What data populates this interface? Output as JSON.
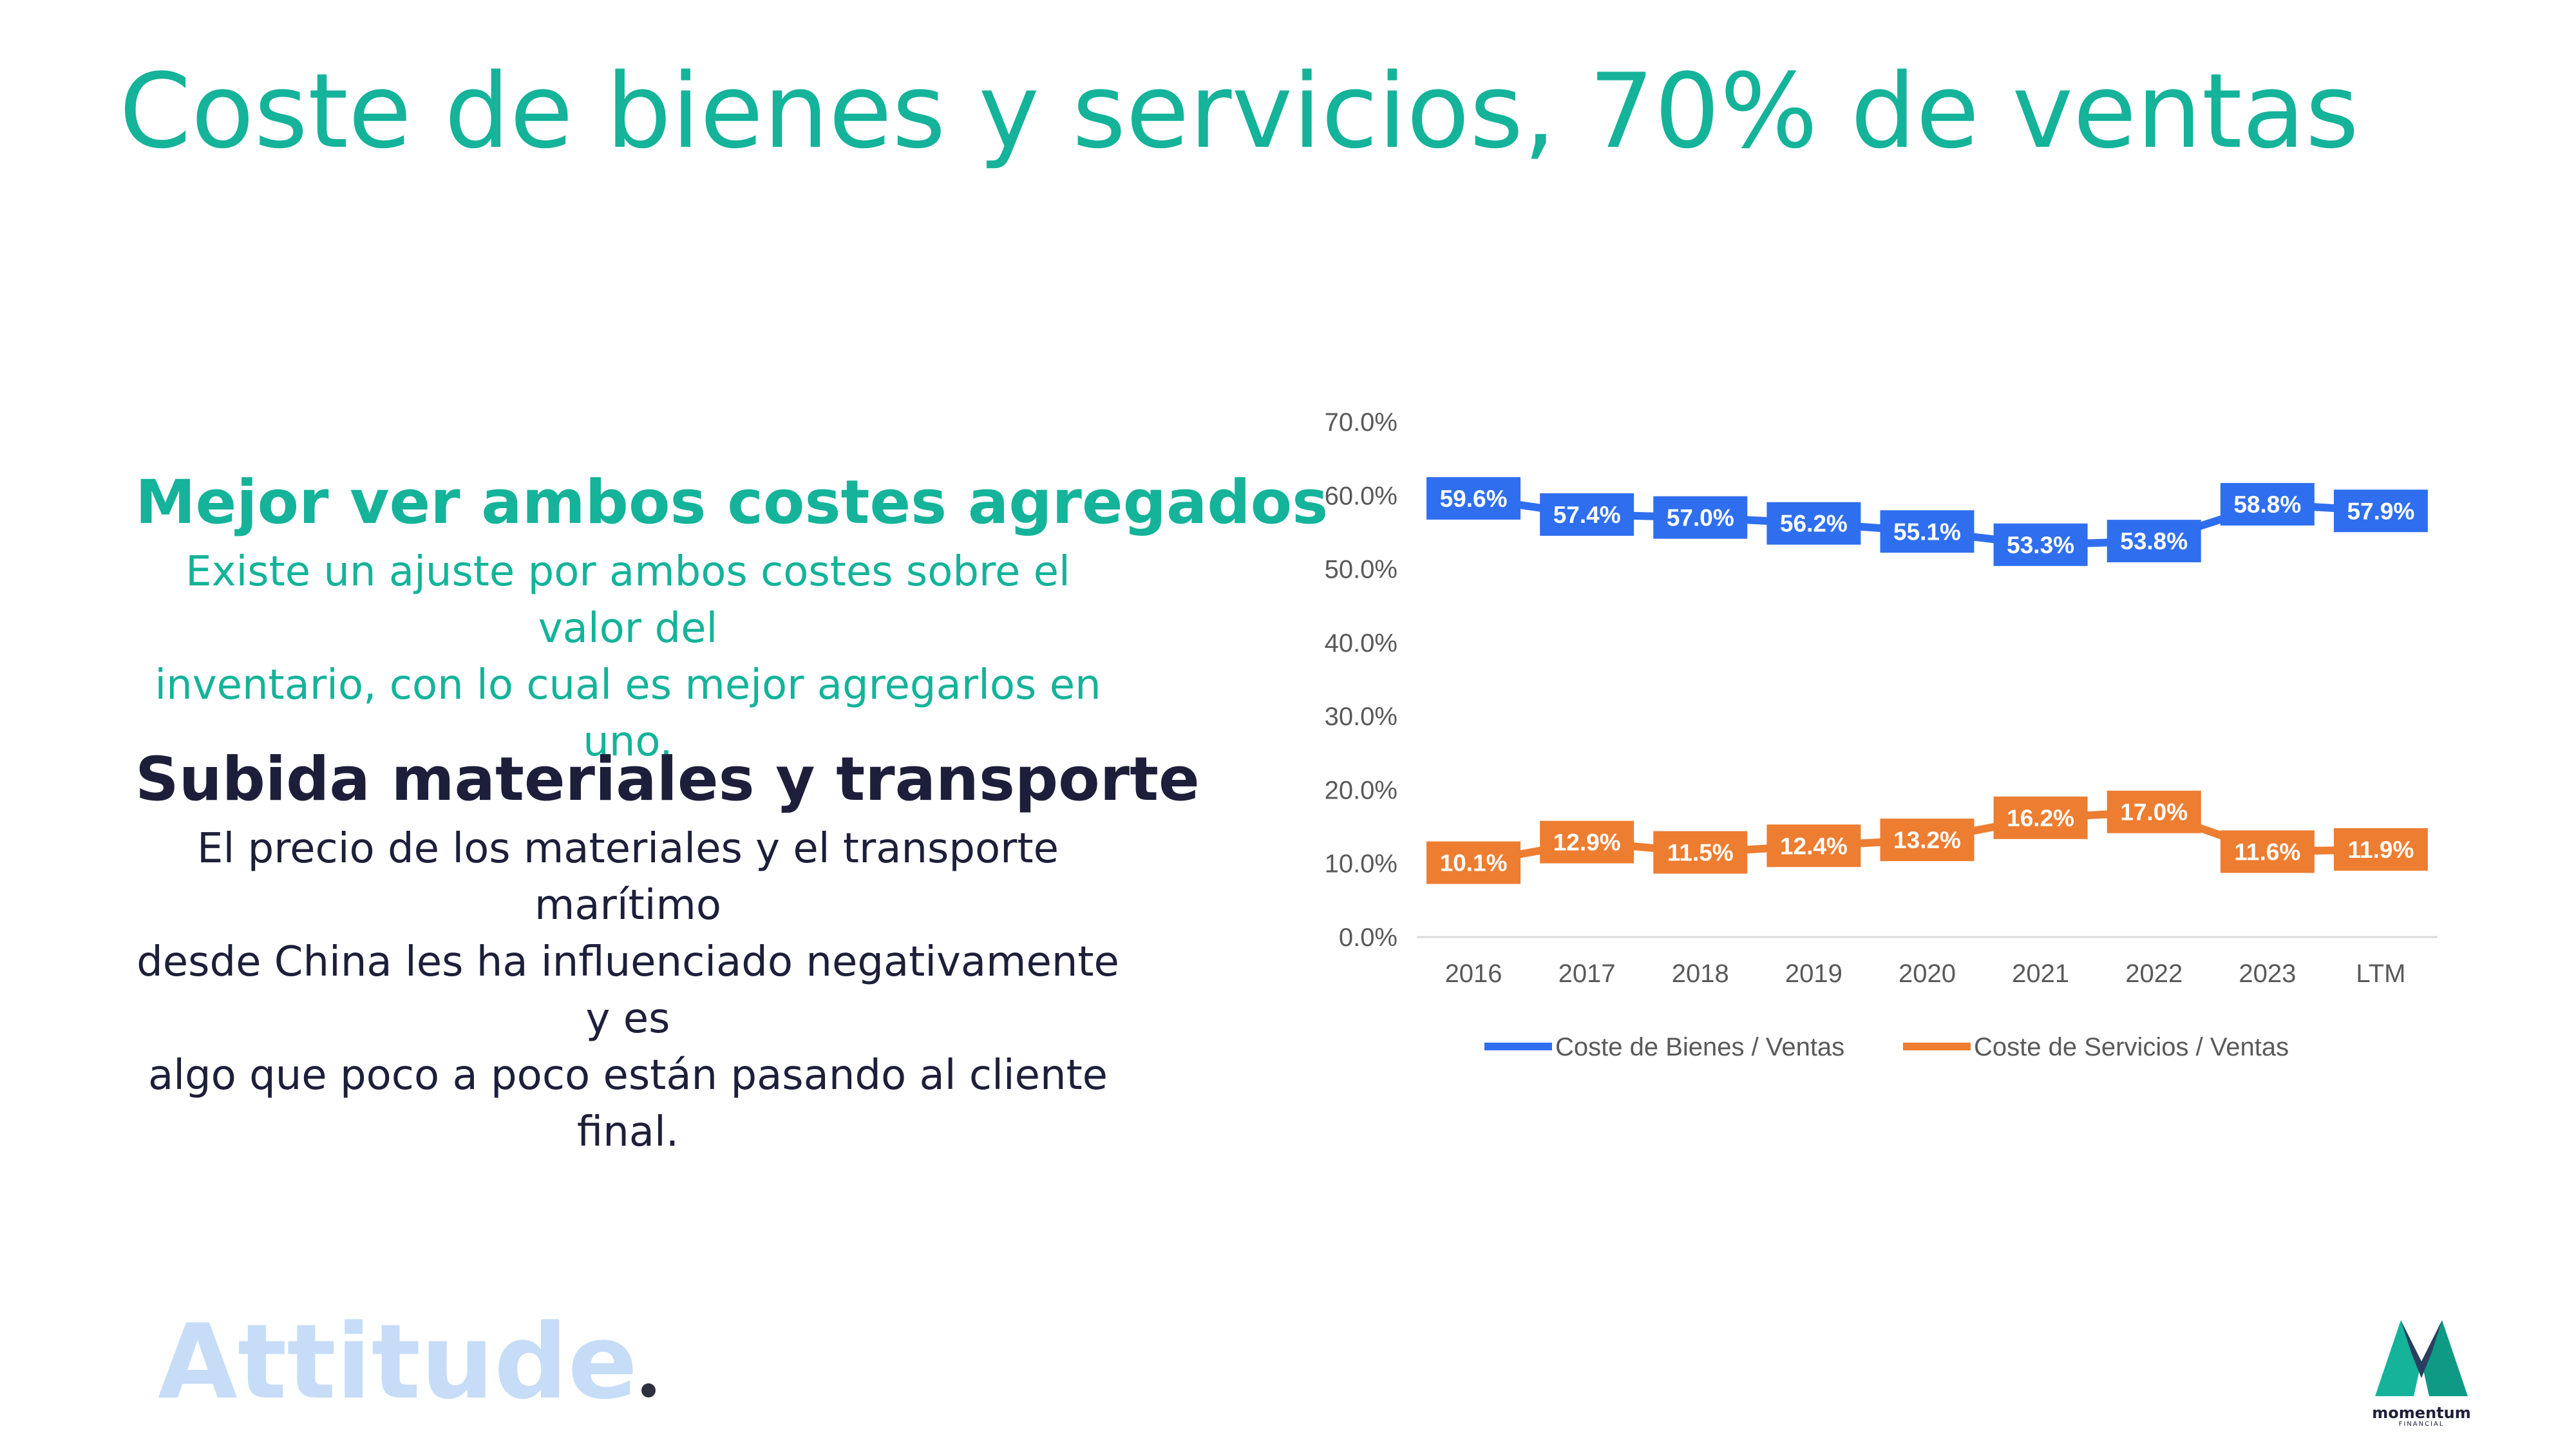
{
  "slide": {
    "title": "Coste de bienes y servicios, 70% de ventas"
  },
  "blocks": [
    {
      "heading": "Mejor ver ambos costes agregados",
      "lines": [
        "Existe un ajuste por ambos costes sobre el valor del",
        "inventario, con lo cual es mejor agregarlos en uno."
      ]
    },
    {
      "heading": "Subida materiales y transporte",
      "lines": [
        "El precio de los materiales y el transporte marítimo",
        "desde China les ha influenciado negativamente y es",
        "algo que poco a poco están pasando al cliente final."
      ]
    }
  ],
  "brand": {
    "attitude_text": "Attitude",
    "logo_text": "momentum",
    "logo_subtext": "FINANCIAL"
  },
  "colors": {
    "accent": "#14b39a",
    "dark_text": "#1d1f3a",
    "series_bienes": "#2f6fef",
    "series_servicios": "#ed7d31"
  },
  "chart_data": {
    "type": "line",
    "title": "",
    "xlabel": "",
    "ylabel": "",
    "categories": [
      "2016",
      "2017",
      "2018",
      "2019",
      "2020",
      "2021",
      "2022",
      "2023",
      "LTM"
    ],
    "ylim": [
      0,
      70
    ],
    "yticks": [
      "0.0%",
      "10.0%",
      "20.0%",
      "30.0%",
      "40.0%",
      "50.0%",
      "60.0%",
      "70.0%"
    ],
    "grid": false,
    "legend_position": "bottom",
    "series": [
      {
        "name": "Coste de Bienes / Ventas",
        "color": "#2f6fef",
        "values": [
          59.6,
          57.4,
          57.0,
          56.2,
          55.1,
          53.3,
          53.8,
          58.8,
          57.9
        ],
        "labels": [
          "59.6%",
          "57.4%",
          "57.0%",
          "56.2%",
          "55.1%",
          "53.3%",
          "53.8%",
          "58.8%",
          "57.9%"
        ]
      },
      {
        "name": "Coste de Servicios / Ventas",
        "color": "#ed7d31",
        "values": [
          10.1,
          12.9,
          11.5,
          12.4,
          13.2,
          16.2,
          17.0,
          11.6,
          11.9
        ],
        "labels": [
          "10.1%",
          "12.9%",
          "11.5%",
          "12.4%",
          "13.2%",
          "16.2%",
          "17.0%",
          "11.6%",
          "11.9%"
        ]
      }
    ]
  }
}
